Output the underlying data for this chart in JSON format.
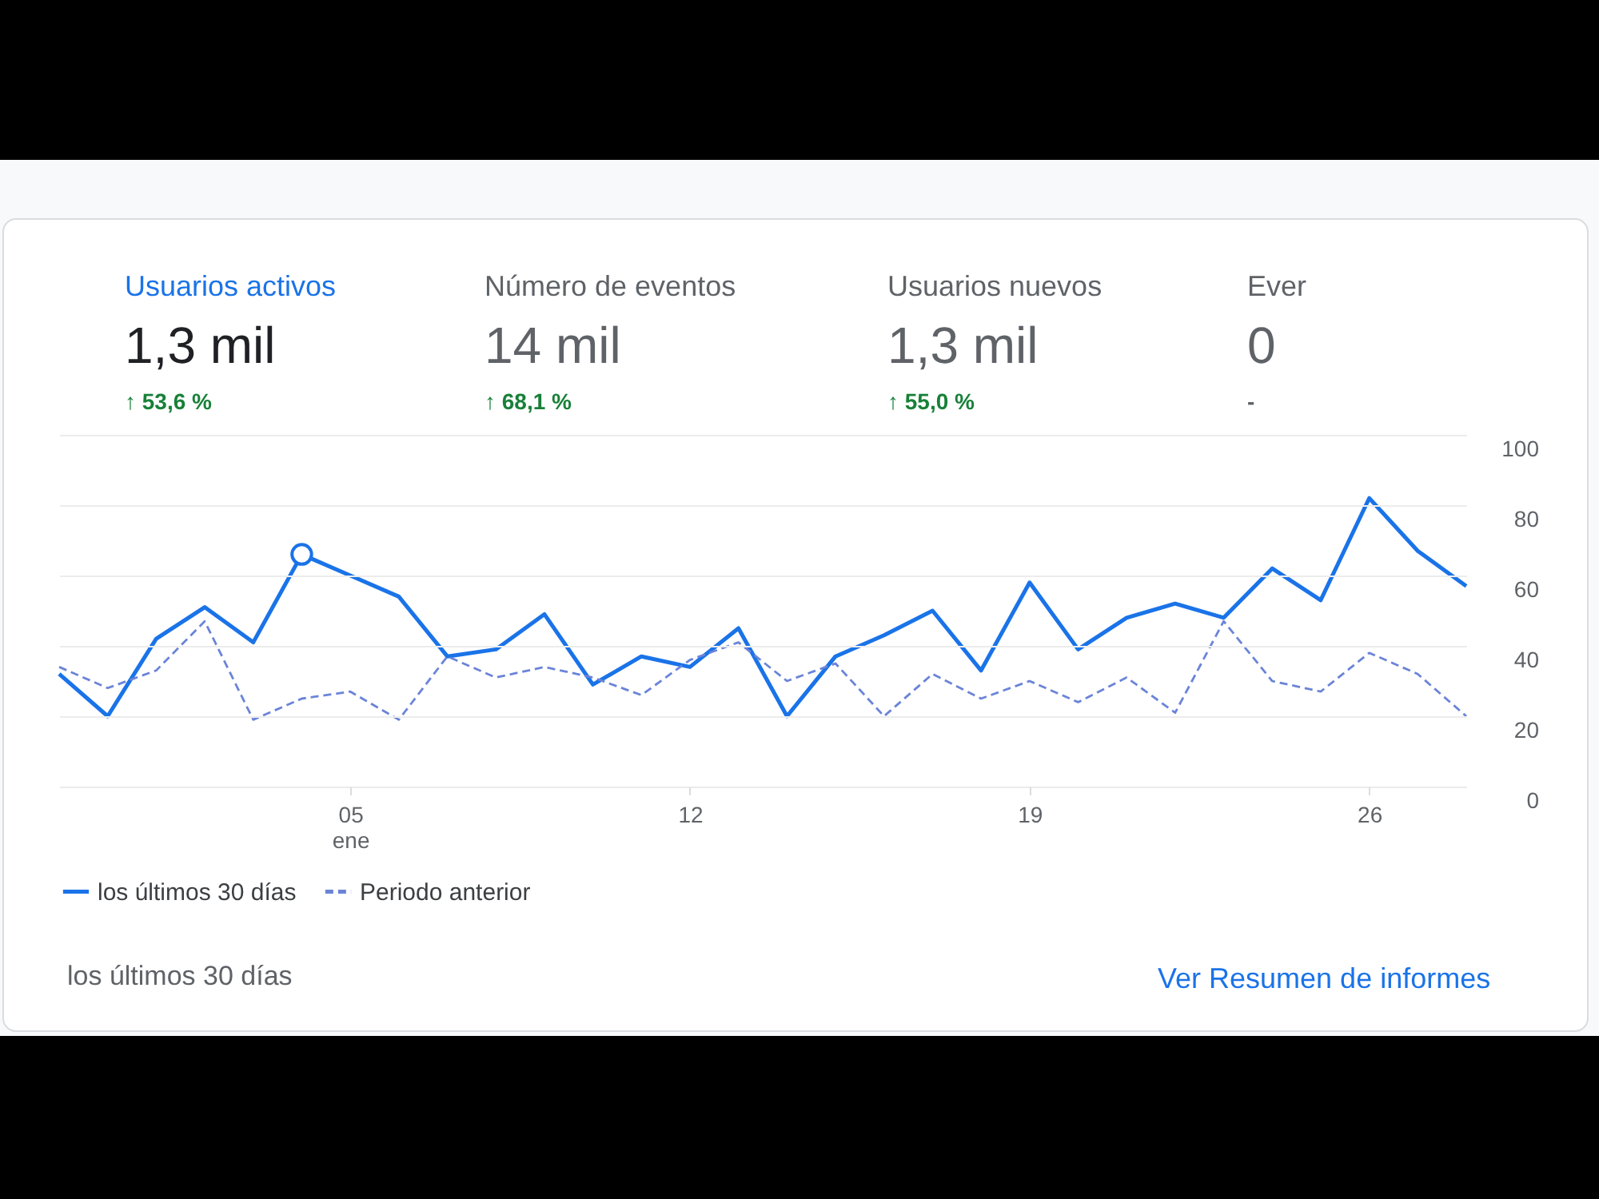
{
  "chart_data": {
    "type": "line",
    "categories": [
      null,
      null,
      null,
      null,
      null,
      null,
      "05\nene",
      null,
      null,
      null,
      null,
      null,
      null,
      "12",
      null,
      null,
      null,
      null,
      null,
      null,
      "19",
      null,
      null,
      null,
      null,
      null,
      null,
      "26",
      null,
      null
    ],
    "ylim": [
      0,
      100
    ],
    "yticks": [
      0,
      20,
      40,
      60,
      80,
      100
    ],
    "grid": "y",
    "legend": "bottom left",
    "series": [
      {
        "name": "los últimos 30 días",
        "color": "#1a73e8",
        "line_style": "solid",
        "values": [
          32,
          20,
          42,
          51,
          41,
          66,
          60,
          54,
          37,
          39,
          49,
          29,
          37,
          34,
          45,
          20,
          37,
          43,
          50,
          33,
          58,
          39,
          48,
          52,
          48,
          62,
          53,
          82,
          67,
          57
        ]
      },
      {
        "name": "Periodo anterior",
        "color": "#6b84d8",
        "line_style": "dashed",
        "values": [
          34,
          28,
          33,
          47,
          19,
          25,
          27,
          19,
          37,
          31,
          34,
          31,
          26,
          36,
          41,
          30,
          35,
          20,
          32,
          25,
          30,
          24,
          31,
          21,
          47,
          30,
          27,
          38,
          32,
          20
        ]
      },
      {
        "type": "scatter",
        "marker": "circle",
        "color": "#1a73e8",
        "values": [
          null,
          null,
          null,
          null,
          null,
          66,
          null,
          null,
          null,
          null,
          null,
          null,
          null,
          null,
          null,
          null,
          null,
          null,
          null,
          null,
          null,
          null,
          null,
          null,
          null,
          null,
          null,
          null,
          null,
          null
        ]
      }
    ],
    "annotations": [
      "Usuarios activos",
      "1,3 mil",
      "↑ 53,6 %",
      "Número de eventos",
      "14 mil",
      "↑ 68,1 %",
      "Usuarios nuevos",
      "1,3 mil",
      "↑ 55,0 %",
      "Ever",
      "0",
      "-",
      "los últimos 30 días",
      "Ver Resumen de informes"
    ]
  }
}
